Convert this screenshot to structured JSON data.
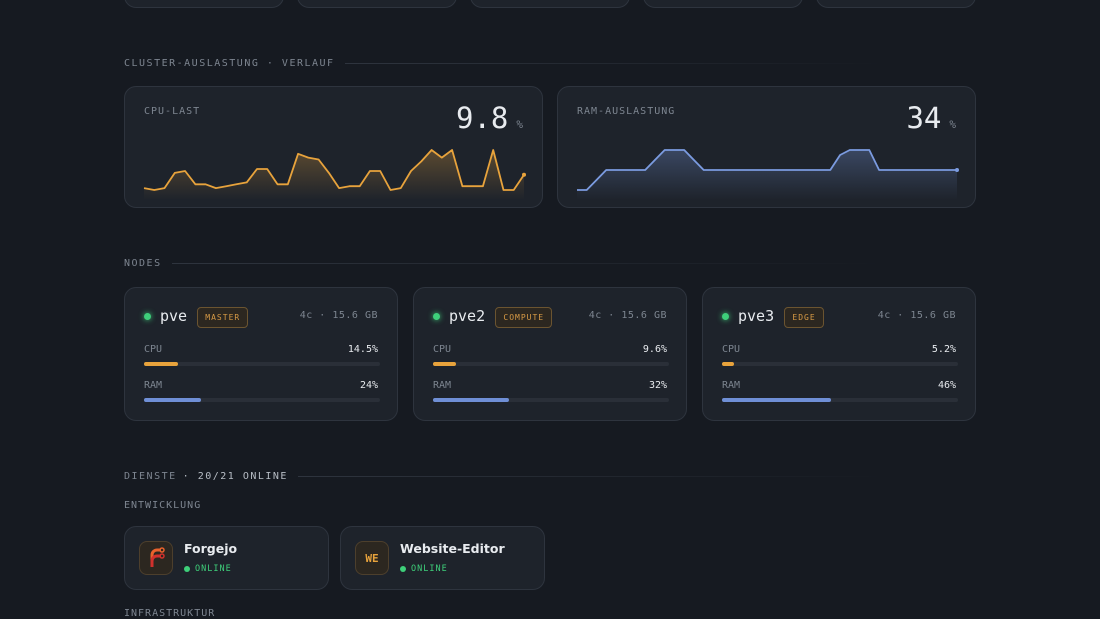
{
  "sections": {
    "history": "CLUSTER-AUSLASTUNG · VERLAUF",
    "nodes": "NODES",
    "services": "DIENSTE",
    "services_count": "· 20/21 ONLINE"
  },
  "charts": [
    {
      "type": "line",
      "title": "CPU-LAST",
      "value": "9.8",
      "unit": "%",
      "color": "#e8a33c",
      "values": [
        3,
        2.5,
        3,
        7,
        7.5,
        4,
        4,
        3,
        3.5,
        4,
        4.5,
        8,
        8,
        4,
        4,
        12,
        11,
        10.5,
        7,
        3,
        3.5,
        3.5,
        7.5,
        7.5,
        2.5,
        3,
        7.5,
        10,
        13,
        11,
        13,
        3.5,
        3.5,
        3.5,
        13,
        2.5,
        2.5,
        6.5
      ]
    },
    {
      "type": "line",
      "title": "RAM-AUSLASTUNG",
      "value": "34",
      "unit": "%",
      "color": "#7b9be0",
      "values": [
        30,
        30,
        32,
        34,
        34,
        34,
        34,
        34,
        36,
        38,
        38,
        38,
        36,
        34,
        34,
        34,
        34,
        34,
        34,
        34,
        34,
        34,
        34,
        34,
        34,
        34,
        34,
        37,
        38,
        38,
        38,
        34,
        34,
        34,
        34,
        34,
        34,
        34,
        34,
        34
      ]
    }
  ],
  "nodes": [
    {
      "name": "pve",
      "role": "MASTER",
      "spec": "4c · 15.6 GB",
      "metrics": [
        {
          "name": "CPU",
          "value": 14.5,
          "label": "14.5%"
        },
        {
          "name": "RAM",
          "value": 24,
          "label": "24%"
        }
      ]
    },
    {
      "name": "pve2",
      "role": "COMPUTE",
      "spec": "4c · 15.6 GB",
      "metrics": [
        {
          "name": "CPU",
          "value": 9.6,
          "label": "9.6%"
        },
        {
          "name": "RAM",
          "value": 32,
          "label": "32%"
        }
      ]
    },
    {
      "name": "pve3",
      "role": "EDGE",
      "spec": "4c · 15.6 GB",
      "metrics": [
        {
          "name": "CPU",
          "value": 5.2,
          "label": "5.2%"
        },
        {
          "name": "RAM",
          "value": 46,
          "label": "46%"
        }
      ]
    }
  ],
  "groups": [
    {
      "name": "ENTWICKLUNG",
      "services": [
        {
          "name": "Forgejo",
          "status": "ONLINE"
        },
        {
          "name": "Website-Editor",
          "icon_text": "WE",
          "status": "ONLINE"
        }
      ]
    },
    {
      "name": "INFRASTRUKTUR",
      "services": []
    }
  ]
}
